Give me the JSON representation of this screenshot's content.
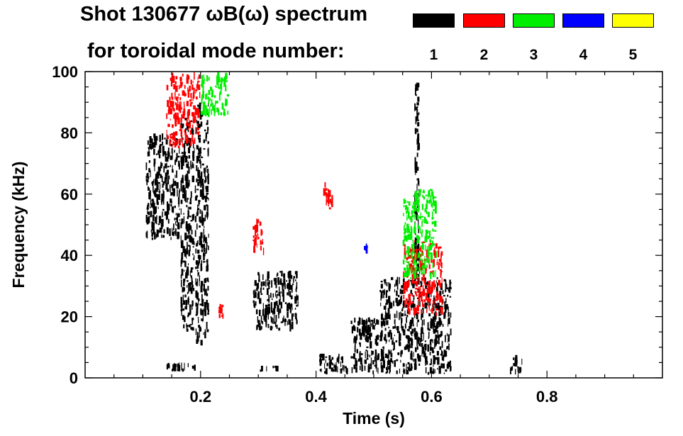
{
  "chart_data": {
    "type": "heatmap",
    "title_line1": "Shot 130677 ωB(ω) spectrum",
    "title_line2": "for toroidal mode number:",
    "xlabel": "Time (s)",
    "ylabel": "Frequency (kHz)",
    "xlim": [
      0.0,
      1.0
    ],
    "ylim": [
      0,
      100
    ],
    "x_ticks": [
      0.2,
      0.4,
      0.6,
      0.8
    ],
    "x_tick_labels": [
      "0.2",
      "0.4",
      "0.6",
      "0.8"
    ],
    "y_ticks": [
      0,
      20,
      40,
      60,
      80,
      100
    ],
    "y_tick_labels": [
      "0",
      "20",
      "40",
      "60",
      "80",
      "100"
    ],
    "grid": false,
    "legend": {
      "placement": "top-right",
      "entries": [
        {
          "label": "1",
          "color": "#000000"
        },
        {
          "label": "2",
          "color": "#ff0000"
        },
        {
          "label": "3",
          "color": "#00ee00"
        },
        {
          "label": "4",
          "color": "#0000ff"
        },
        {
          "label": "5",
          "color": "#ffff00"
        }
      ]
    },
    "series": [
      {
        "name": "1",
        "color": "#000000",
        "regions": [
          {
            "t": [
              0.105,
              0.165
            ],
            "f": [
              45,
              80
            ]
          },
          {
            "t": [
              0.165,
              0.19
            ],
            "f": [
              15,
              85
            ]
          },
          {
            "t": [
              0.19,
              0.215
            ],
            "f": [
              10,
              90
            ]
          },
          {
            "t": [
              0.29,
              0.37
            ],
            "f": [
              15,
              35
            ]
          },
          {
            "t": [
              0.405,
              0.46
            ],
            "f": [
              1,
              8
            ]
          },
          {
            "t": [
              0.46,
              0.51
            ],
            "f": [
              1,
              20
            ]
          },
          {
            "t": [
              0.51,
              0.635
            ],
            "f": [
              1,
              33
            ]
          },
          {
            "t": [
              0.57,
              0.58
            ],
            "f": [
              30,
              98
            ]
          },
          {
            "t": [
              0.735,
              0.76
            ],
            "f": [
              1,
              8
            ]
          },
          {
            "t": [
              0.14,
              0.2
            ],
            "f": [
              2,
              5
            ]
          },
          {
            "t": [
              0.3,
              0.34
            ],
            "f": [
              2,
              4
            ]
          }
        ]
      },
      {
        "name": "2",
        "color": "#ff0000",
        "regions": [
          {
            "t": [
              0.14,
              0.2
            ],
            "f": [
              75,
              100
            ]
          },
          {
            "t": [
              0.29,
              0.31
            ],
            "f": [
              40,
              52
            ]
          },
          {
            "t": [
              0.41,
              0.43
            ],
            "f": [
              55,
              65
            ]
          },
          {
            "t": [
              0.55,
              0.62
            ],
            "f": [
              20,
              45
            ]
          },
          {
            "t": [
              0.23,
              0.24
            ],
            "f": [
              18,
              25
            ]
          }
        ]
      },
      {
        "name": "3",
        "color": "#00ee00",
        "regions": [
          {
            "t": [
              0.2,
              0.25
            ],
            "f": [
              85,
              100
            ]
          },
          {
            "t": [
              0.55,
              0.61
            ],
            "f": [
              32,
              62
            ]
          }
        ]
      },
      {
        "name": "4",
        "color": "#0000ff",
        "regions": [
          {
            "t": [
              0.48,
              0.49
            ],
            "f": [
              40,
              45
            ]
          }
        ]
      },
      {
        "name": "5",
        "color": "#ffff00",
        "regions": []
      }
    ]
  }
}
